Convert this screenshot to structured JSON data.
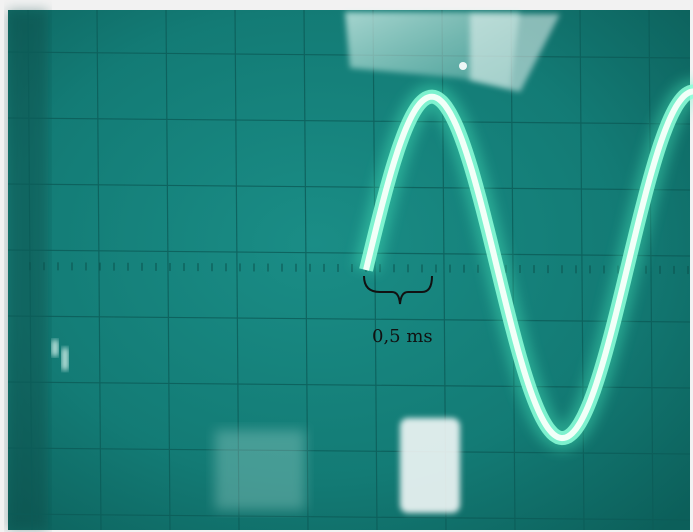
{
  "annotation": {
    "label": "0,5 ms"
  },
  "colors": {
    "screen": "#13807a",
    "grid": "#0c5c58",
    "trace": "#e4fff2",
    "glow": "#4ff7c4"
  }
}
